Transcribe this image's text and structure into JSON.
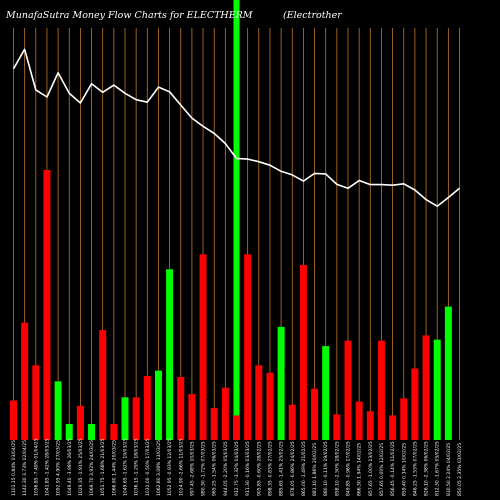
{
  "header": {
    "title": "MunafaSutra  Money Flow  Charts for ELECTHERM",
    "subtitle": "(Electrother"
  },
  "colors": {
    "background": "#000000",
    "up_bar": "#00ff00",
    "down_bar": "#ff0000",
    "grid_line": "#c0782a",
    "price_line": "#ffffff",
    "highlight_band": "#00ff00",
    "text": "#ffffff"
  },
  "chart_data": {
    "type": "bar",
    "title": "MunafaSutra  Money Flow  Charts for ELECTHERM",
    "subtitle": "(Electrother",
    "xlabel": "",
    "ylabel": "",
    "grid": true,
    "highlight_index": 20,
    "categories": [
      "1101.15 0.84% 03/04/25",
      "1142.30 3.73% 02/04/25",
      "1056.85 -7.49% 01/04/25",
      "1041.85 -1.42% 28/03/25",
      "1092.95 4.90% 27/03/25",
      "1049.40 -3.98% 26/03/25",
      "1029.35 -1.91% 25/03/25",
      "1069.70 3.92% 24/03/25",
      "1051.75 -1.68% 21/03/25",
      "1066.90 1.44% 20/03/25",
      "1049.65 -1.62% 19/03/25",
      "1036.15 -1.29% 18/03/25",
      "1031.00 -0.50% 17/03/25",
      "1062.80 3.08% 13/03/25",
      "1052.95 -0.93% 12/03/25",
      "1024.90 -2.66% 11/03/25",
      "997.45 -2.68% 10/03/25",
      "980.30 -1.72% 07/03/25",
      "965.25 -1.54% 06/03/25",
      "944.05 -2.20% 05/03/25",
      "912.75 -3.32% 04/03/25",
      "911.30 -0.16% 03/03/25",
      "905.85 -0.60% 28/02/25",
      "898.35 -0.83% 27/02/25",
      "885.65 -1.41% 25/02/25",
      "878.05 -0.86% 24/02/25",
      "865.00 -1.49% 21/02/25",
      "881.10 1.86% 20/02/25",
      "880.10 -0.11% 19/02/25",
      "858.10 -2.50% 18/02/25",
      "849.85 -0.96% 17/02/25",
      "866.30 1.94% 14/02/25",
      "857.65 -1.00% 13/02/25",
      "857.65 0.00% 12/02/25",
      "856.45 -0.14% 11/02/25",
      "859.40 0.34% 10/02/25",
      "846.25 -1.53% 07/02/25",
      "826.10 -2.38% 06/02/25",
      "812.30 -1.67% 05/02/25",
      "830.50 2.24% 04/02/25",
      "850.05 2.35% 03/02/25"
    ],
    "values": [
      37,
      110,
      70,
      253,
      55,
      15,
      32,
      15,
      103,
      15,
      40,
      40,
      60,
      65,
      160,
      59,
      43,
      174,
      30,
      49,
      23,
      174,
      70,
      63,
      106,
      33,
      164,
      48,
      88,
      24,
      93,
      36,
      27,
      93,
      23,
      39,
      67,
      98,
      94,
      125,
      0
    ],
    "directions": [
      "down",
      "down",
      "down",
      "down",
      "up",
      "up",
      "down",
      "up",
      "down",
      "down",
      "up",
      "down",
      "down",
      "up",
      "up",
      "down",
      "down",
      "down",
      "down",
      "down",
      "down",
      "down",
      "down",
      "down",
      "up",
      "down",
      "down",
      "down",
      "up",
      "down",
      "down",
      "down",
      "down",
      "down",
      "down",
      "down",
      "down",
      "down",
      "up",
      "up",
      "flat"
    ],
    "ylim": [
      0,
      253
    ],
    "price_line": {
      "values": [
        1101.15,
        1142.3,
        1056.85,
        1041.85,
        1092.95,
        1049.4,
        1029.35,
        1069.7,
        1051.75,
        1066.9,
        1049.65,
        1036.15,
        1031.0,
        1062.8,
        1052.95,
        1024.9,
        997.45,
        980.3,
        965.25,
        944.05,
        912.75,
        911.3,
        905.85,
        898.35,
        885.65,
        878.05,
        865.0,
        881.1,
        880.1,
        858.1,
        849.85,
        866.3,
        857.65,
        857.65,
        856.45,
        859.4,
        846.25,
        826.1,
        812.3,
        830.5,
        850.05
      ],
      "ylim": [
        800,
        1145
      ]
    }
  }
}
